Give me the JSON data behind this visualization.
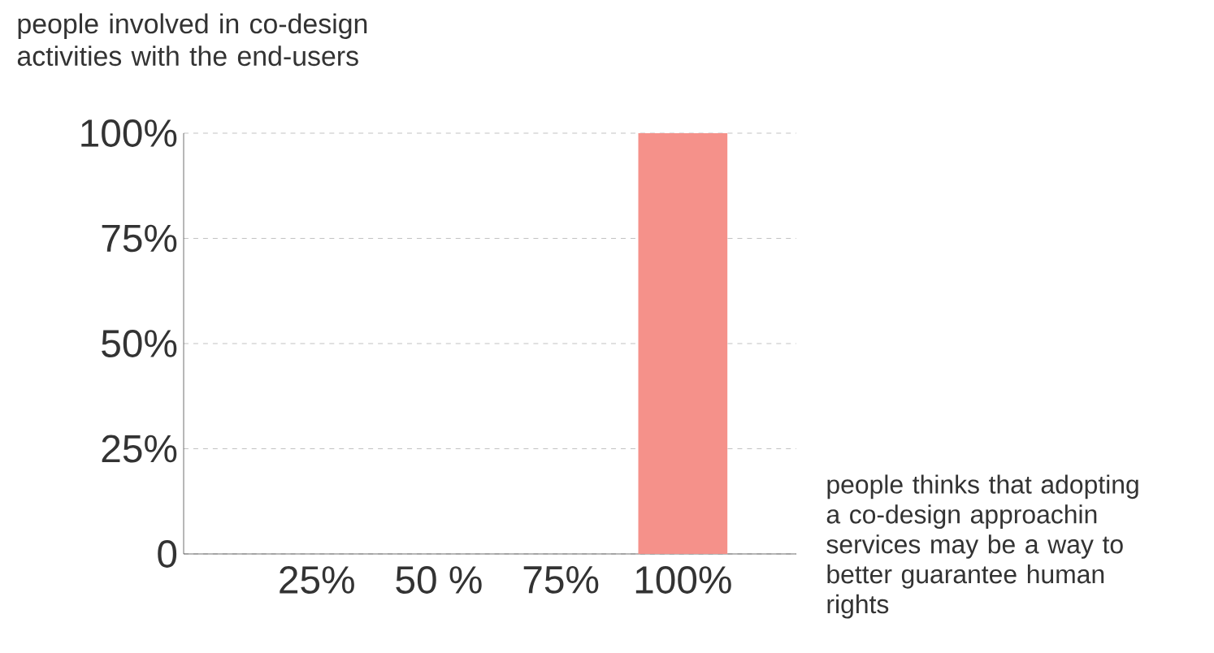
{
  "chart_data": {
    "type": "bar",
    "ylabel": "people involved in co-design activities with the end-users",
    "annotations": [
      "people thinks that adopting a co-design approachin services may be a way to better guarantee human rights"
    ],
    "categories": [
      "25%",
      "50 %",
      "75%",
      "100%"
    ],
    "values": [
      0,
      0,
      0,
      100
    ],
    "color": "#f5918a",
    "ylim": [
      0,
      100
    ],
    "yticks": [
      {
        "value": 0,
        "label": "0"
      },
      {
        "value": 25,
        "label": "25%"
      },
      {
        "value": 50,
        "label": "50%"
      },
      {
        "value": 75,
        "label": "75%"
      },
      {
        "value": 100,
        "label": "100%"
      }
    ],
    "grid": "y"
  }
}
